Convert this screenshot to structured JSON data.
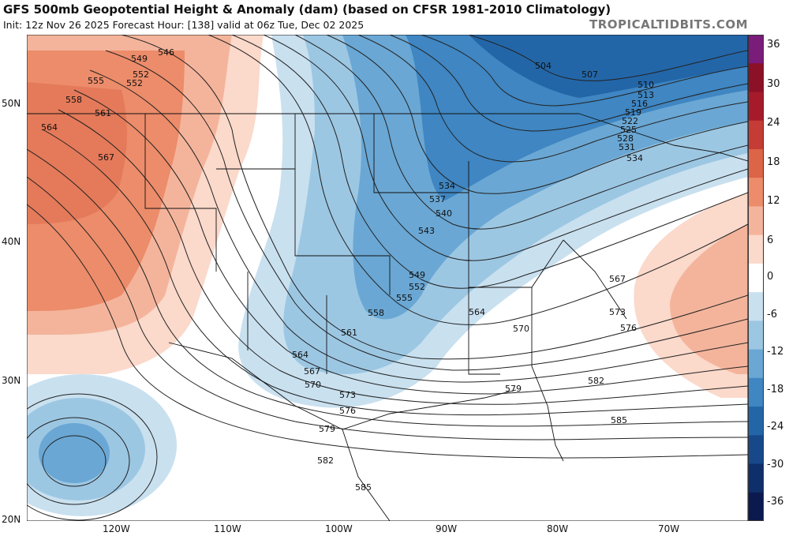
{
  "header": {
    "title": "GFS 500mb Geopotential Height & Anomaly (dam) (based on CFSR 1981-2010 Climatology)",
    "subtitle": "Init: 12z Nov 26 2025   Forecast Hour: [138]   valid at 06z Tue, Dec 02 2025",
    "credit": "TROPICALTIDBITS.COM"
  },
  "map": {
    "lat_labels": [
      "50N",
      "40N",
      "30N",
      "20N"
    ],
    "lon_labels": [
      "120W",
      "110W",
      "100W",
      "90W",
      "80W",
      "70W"
    ],
    "contour_labels": [
      "504",
      "507",
      "510",
      "513",
      "516",
      "519",
      "522",
      "525",
      "528",
      "531",
      "534",
      "537",
      "540",
      "543",
      "546",
      "549",
      "552",
      "555",
      "558",
      "561",
      "564",
      "567",
      "570",
      "573",
      "576",
      "579",
      "582",
      "585"
    ],
    "colors": {
      "positive_anomaly": "#e8957a",
      "negative_anomaly": "#5a9ccd",
      "contour": "#222222",
      "borders": "#111111"
    }
  },
  "colorbar": {
    "ticks": [
      "36",
      "30",
      "24",
      "18",
      "12",
      "6",
      "0",
      "-6",
      "-12",
      "-18",
      "-24",
      "-30",
      "-36"
    ],
    "colors": [
      "#7a1c7a",
      "#8c1026",
      "#a51b2c",
      "#c53b36",
      "#dc6447",
      "#ec8c6a",
      "#f4b49b",
      "#fbd9cb",
      "#ffffff",
      "#c9e0ef",
      "#9cc7e3",
      "#6aa7d4",
      "#3f86c2",
      "#2366a8",
      "#17498a",
      "#0f2f6b",
      "#0a1a4f"
    ]
  }
}
